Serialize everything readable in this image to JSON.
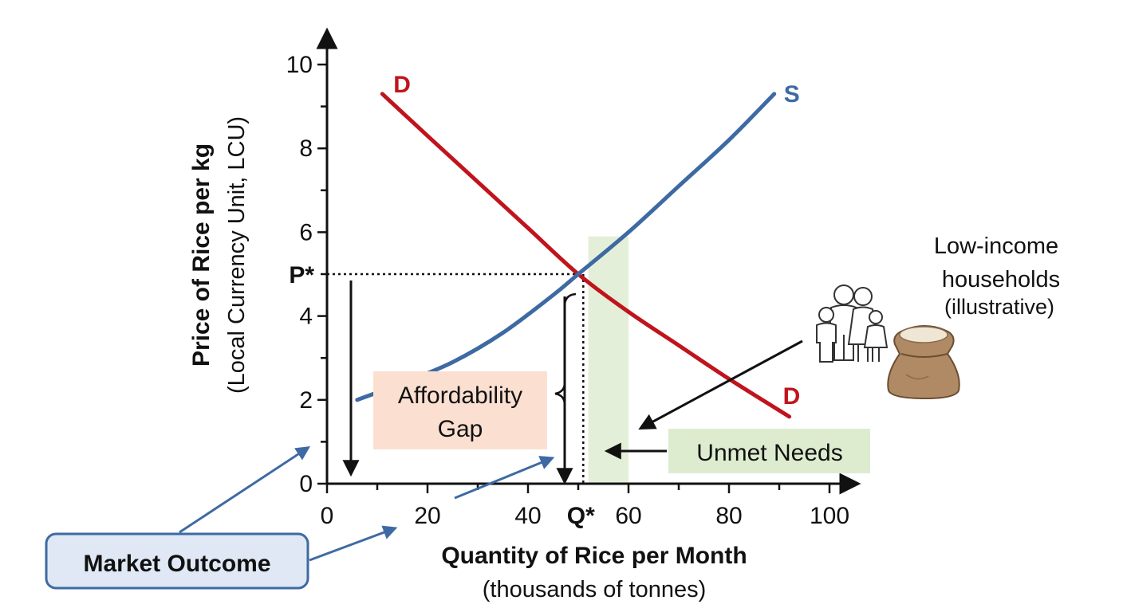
{
  "chart_data": {
    "type": "line",
    "title": "",
    "xlabel": "Quantity of Rice per Month",
    "xlabel_sub": "(thousands of tonnes)",
    "ylabel": "Price of Rice per kg",
    "ylabel_sub": "(Local Currency Unit, LCU)",
    "xlim": [
      0,
      100
    ],
    "ylim": [
      0,
      10
    ],
    "x_ticks": [
      "0",
      "20",
      "40",
      "60",
      "80",
      "100"
    ],
    "y_ticks": [
      "0",
      "2",
      "4",
      "6",
      "8",
      "10"
    ],
    "grid": false,
    "series": [
      {
        "name": "D",
        "color": "#c0141c",
        "x": [
          11,
          20,
          30,
          40,
          50,
          60,
          70,
          80,
          92
        ],
        "y": [
          9.3,
          8.3,
          7.2,
          6.1,
          5.0,
          4.1,
          3.3,
          2.5,
          1.6
        ]
      },
      {
        "name": "S",
        "color": "#3e6aa3",
        "x": [
          6,
          15,
          25,
          35,
          45,
          50,
          60,
          70,
          80,
          89
        ],
        "y": [
          2.0,
          2.4,
          2.9,
          3.6,
          4.5,
          5.0,
          6.0,
          7.1,
          8.2,
          9.3
        ]
      }
    ],
    "equilibrium": {
      "x": 51,
      "y": 5.0,
      "x_label": "Q*",
      "y_label": "P*"
    },
    "unmet_band": {
      "x_from": 52,
      "x_to": 60,
      "y_top": 5.9,
      "color": "#e3efd9"
    },
    "annotations": {
      "affordability_gap": {
        "line1": "Affordability",
        "line2": "Gap",
        "color": "#fbe0d2"
      },
      "unmet_needs": {
        "label": "Unmet Needs",
        "color": "#ddeccf"
      },
      "low_income": {
        "line1": "Low-income",
        "line2": "households",
        "line3": "(illustrative)"
      },
      "market_outcome": {
        "label": "Market Outcome",
        "fill": "#dfe8f4",
        "stroke": "#3e6aa3"
      }
    },
    "icons": [
      "family-icon",
      "rice-sack-icon"
    ]
  }
}
